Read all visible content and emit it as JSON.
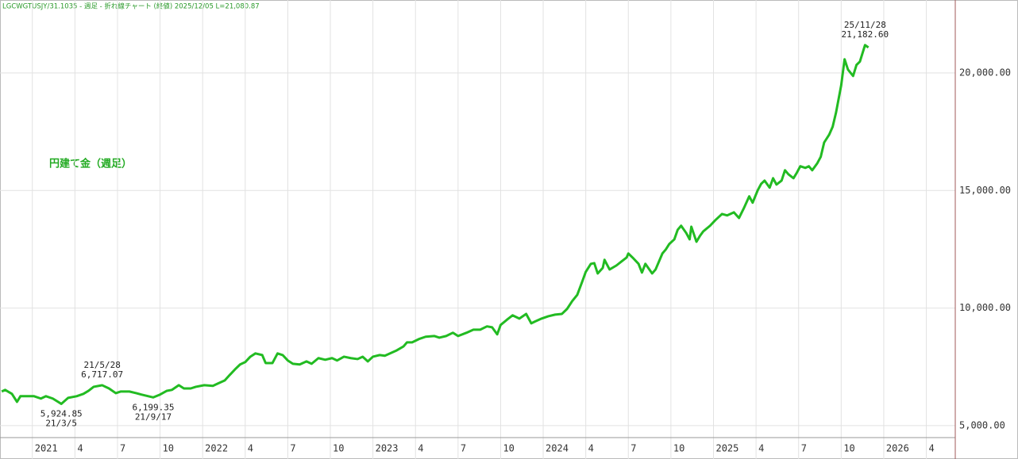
{
  "chart_data": {
    "type": "line",
    "header": "LGCWGTUSJY/31.1035 - 週足 - 折れ線チャート (終値)  2025/12/05 L=21,080.87",
    "title": "円建て金（週足）",
    "color": "#22bb22",
    "grid": true,
    "xlim": [
      2020.81,
      2026.42
    ],
    "ylim": [
      4490,
      23100
    ],
    "xticks": [
      {
        "value": 2021,
        "label": "2021"
      },
      {
        "value": 2021.25,
        "label": "4"
      },
      {
        "value": 2021.5,
        "label": "7"
      },
      {
        "value": 2021.75,
        "label": "10"
      },
      {
        "value": 2022,
        "label": "2022"
      },
      {
        "value": 2022.25,
        "label": "4"
      },
      {
        "value": 2022.5,
        "label": "7"
      },
      {
        "value": 2022.75,
        "label": "10"
      },
      {
        "value": 2023,
        "label": "2023"
      },
      {
        "value": 2023.25,
        "label": "4"
      },
      {
        "value": 2023.5,
        "label": "7"
      },
      {
        "value": 2023.75,
        "label": "10"
      },
      {
        "value": 2024,
        "label": "2024"
      },
      {
        "value": 2024.25,
        "label": "4"
      },
      {
        "value": 2024.5,
        "label": "7"
      },
      {
        "value": 2024.75,
        "label": "10"
      },
      {
        "value": 2025,
        "label": "2025"
      },
      {
        "value": 2025.25,
        "label": "4"
      },
      {
        "value": 2025.5,
        "label": "7"
      },
      {
        "value": 2025.75,
        "label": "10"
      },
      {
        "value": 2026,
        "label": "2026"
      },
      {
        "value": 2026.25,
        "label": "4"
      }
    ],
    "yticks": [
      {
        "value": 5000,
        "label": "5,000.00"
      },
      {
        "value": 10000,
        "label": "10,000.00"
      },
      {
        "value": 15000,
        "label": "15,000.00"
      },
      {
        "value": 20000,
        "label": "20,000.00"
      }
    ],
    "x": [
      2020.82,
      2020.84,
      2020.88,
      2020.91,
      2020.93,
      2020.98,
      2021.01,
      2021.05,
      2021.08,
      2021.12,
      2021.17,
      2021.21,
      2021.26,
      2021.3,
      2021.33,
      2021.36,
      2021.41,
      2021.45,
      2021.49,
      2021.52,
      2021.57,
      2021.61,
      2021.64,
      2021.71,
      2021.75,
      2021.79,
      2021.82,
      2021.86,
      2021.89,
      2021.93,
      2021.96,
      2022.01,
      2022.06,
      2022.09,
      2022.13,
      2022.16,
      2022.19,
      2022.22,
      2022.25,
      2022.28,
      2022.31,
      2022.35,
      2022.37,
      2022.41,
      2022.44,
      2022.47,
      2022.5,
      2022.53,
      2022.57,
      2022.61,
      2022.64,
      2022.68,
      2022.72,
      2022.76,
      2022.79,
      2022.83,
      2022.87,
      2022.91,
      2022.94,
      2022.97,
      2023.0,
      2023.04,
      2023.07,
      2023.11,
      2023.14,
      2023.18,
      2023.2,
      2023.23,
      2023.27,
      2023.31,
      2023.36,
      2023.39,
      2023.43,
      2023.47,
      2023.5,
      2023.55,
      2023.59,
      2023.63,
      2023.67,
      2023.7,
      2023.73,
      2023.75,
      2023.79,
      2023.82,
      2023.86,
      2023.9,
      2023.93,
      2023.95,
      2023.99,
      2024.03,
      2024.07,
      2024.11,
      2024.14,
      2024.17,
      2024.2,
      2024.23,
      2024.25,
      2024.28,
      2024.3,
      2024.32,
      2024.35,
      2024.36,
      2024.39,
      2024.43,
      2024.46,
      2024.49,
      2024.5,
      2024.53,
      2024.56,
      2024.58,
      2024.6,
      2024.64,
      2024.66,
      2024.7,
      2024.72,
      2024.74,
      2024.77,
      2024.79,
      2024.81,
      2024.84,
      2024.86,
      2024.87,
      2024.9,
      2024.92,
      2024.94,
      2024.98,
      2025.01,
      2025.05,
      2025.08,
      2025.12,
      2025.15,
      2025.18,
      2025.21,
      2025.23,
      2025.26,
      2025.28,
      2025.3,
      2025.33,
      2025.35,
      2025.37,
      2025.4,
      2025.42,
      2025.44,
      2025.47,
      2025.49,
      2025.51,
      2025.54,
      2025.56,
      2025.58,
      2025.61,
      2025.63,
      2025.65,
      2025.68,
      2025.7,
      2025.72,
      2025.75,
      2025.77,
      2025.79,
      2025.82,
      2025.84,
      2025.86,
      2025.89,
      2025.91
    ],
    "values": [
      6450,
      6520,
      6350,
      6010,
      6250,
      6250,
      6250,
      6150,
      6250,
      6150,
      5924.85,
      6180,
      6250,
      6350,
      6480,
      6650,
      6717.07,
      6580,
      6380,
      6450,
      6450,
      6380,
      6320,
      6199.35,
      6320,
      6480,
      6520,
      6720,
      6580,
      6580,
      6650,
      6720,
      6690,
      6790,
      6920,
      7160,
      7390,
      7600,
      7700,
      7930,
      8070,
      8000,
      7660,
      7660,
      8070,
      8000,
      7770,
      7630,
      7600,
      7730,
      7630,
      7870,
      7800,
      7870,
      7770,
      7930,
      7870,
      7830,
      7930,
      7730,
      7930,
      8000,
      7970,
      8100,
      8200,
      8370,
      8540,
      8540,
      8680,
      8780,
      8810,
      8740,
      8810,
      8950,
      8810,
      8950,
      9080,
      9080,
      9220,
      9180,
      8880,
      9280,
      9520,
      9690,
      9550,
      9750,
      9350,
      9420,
      9550,
      9650,
      9720,
      9750,
      9960,
      10290,
      10560,
      11140,
      11540,
      11880,
      11910,
      11470,
      11710,
      12050,
      11640,
      11810,
      11980,
      12150,
      12320,
      12110,
      11880,
      11510,
      11880,
      11470,
      11640,
      12320,
      12490,
      12720,
      12920,
      13330,
      13500,
      13190,
      12920,
      13460,
      12820,
      13060,
      13260,
      13500,
      13730,
      14000,
      13940,
      14070,
      13830,
      14270,
      14750,
      14480,
      15010,
      15280,
      15420,
      15120,
      15520,
      15250,
      15420,
      15860,
      15690,
      15520,
      15760,
      16030,
      15960,
      16030,
      15860,
      16160,
      16430,
      17040,
      17380,
      17710,
      18320,
      19470,
      20580,
      20140,
      19870,
      20340,
      20480,
      21182.6,
      21080.87
    ],
    "annotations": [
      {
        "x": 2021.17,
        "value": 5924.85,
        "label": "5,924.85",
        "date": "21/3/5"
      },
      {
        "x": 2021.41,
        "value": 6717.07,
        "label": "6,717.07",
        "date": "21/5/28"
      },
      {
        "x": 2021.71,
        "value": 6199.35,
        "label": "6,199.35",
        "date": "21/9/17"
      },
      {
        "x": 2025.89,
        "value": 21182.6,
        "label": "21,182.60",
        "date": "25/11/28"
      }
    ]
  }
}
